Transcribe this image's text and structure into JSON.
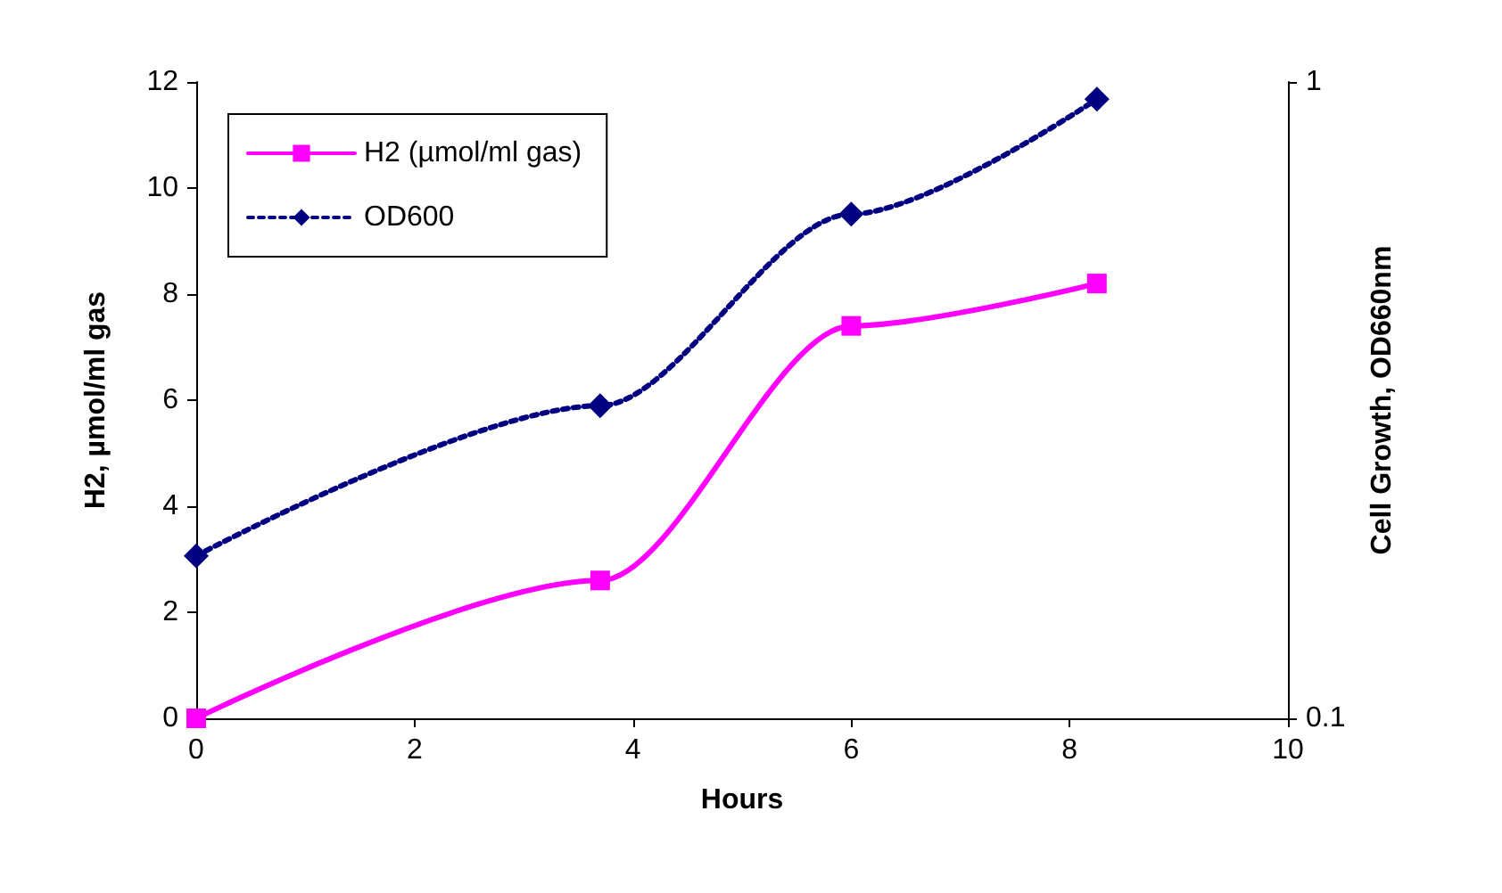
{
  "chart_data": {
    "type": "line",
    "xlabel": "Hours",
    "ylabel": "H2, µmol/ml gas",
    "y2label": "Cell Growth, OD660nm",
    "series": [
      {
        "name": "H2 (µmol/ml gas)",
        "color": "#ff00ff",
        "x": [
          0,
          3.7,
          6,
          8.25
        ],
        "values": [
          0,
          2.6,
          7.4,
          8.2
        ],
        "marker": "square",
        "line_style": "solid"
      },
      {
        "name": "OD600",
        "color": "#000080",
        "x": [
          0,
          3.7,
          6,
          8.25
        ],
        "values": [
          0.18,
          0.31,
          0.62,
          0.94
        ],
        "marker": "diamond",
        "line_style": "dotted",
        "axis": "y2"
      }
    ],
    "xlim": [
      0,
      10
    ],
    "xticks": [
      0,
      2,
      4,
      6,
      8,
      10
    ],
    "ylim": [
      0,
      12
    ],
    "yticks": [
      0,
      2,
      4,
      6,
      8,
      10,
      12
    ],
    "y2lim": [
      0.1,
      1
    ],
    "y2ticks": [
      0.1,
      1
    ],
    "log": "y2",
    "grid": false,
    "legend": "top left"
  }
}
